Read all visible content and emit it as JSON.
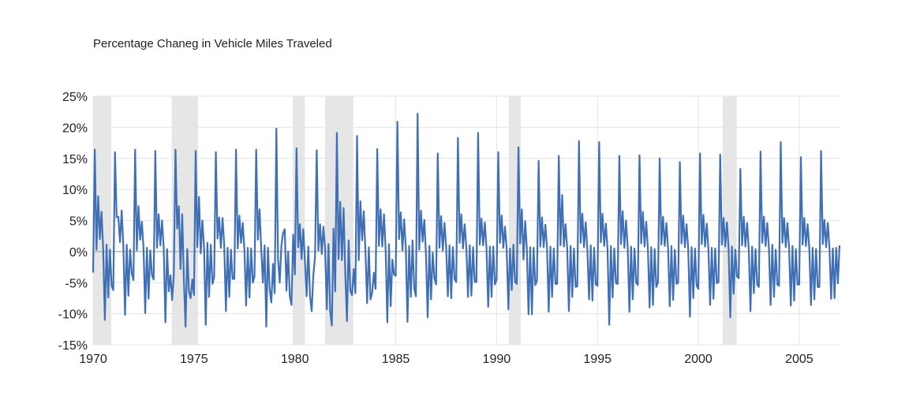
{
  "chart_data": {
    "type": "line",
    "title": "Percentage Chaneg in Vehicle Miles Traveled",
    "xlabel": "",
    "ylabel": "",
    "xlim": [
      1970,
      2007
    ],
    "ylim": [
      -15,
      25
    ],
    "x_ticks": [
      1970,
      1975,
      1980,
      1985,
      1990,
      1995,
      2000,
      2005
    ],
    "x_tick_labels": [
      "1970",
      "1975",
      "1980",
      "1985",
      "1990",
      "1995",
      "2000",
      "2005"
    ],
    "y_ticks": [
      -15,
      -10,
      -5,
      0,
      5,
      10,
      15,
      20,
      25
    ],
    "y_tick_labels": [
      "-15%",
      "-10%",
      "-5%",
      "0%",
      "5%",
      "10%",
      "15%",
      "20%",
      "25%"
    ],
    "grid": "vertical and horizontal light gray",
    "legend": "none",
    "colors": {
      "line": "#3f6fb5",
      "recession": "#e6e6e6",
      "grid": "#e4e4e4",
      "axis": "#999999"
    },
    "recession_bands": [
      [
        1970.0,
        1970.9
      ],
      [
        1973.9,
        1975.2
      ],
      [
        1979.9,
        1980.5
      ],
      [
        1981.5,
        1982.9
      ],
      [
        1990.6,
        1991.2
      ],
      [
        2001.2,
        2001.9
      ]
    ],
    "series": [
      {
        "name": "",
        "frequency": "monthly",
        "start": 1970.0,
        "values": [
          -3.4,
          16.4,
          0.3,
          8.9,
          2.0,
          6.4,
          0.3,
          -11.0,
          1.1,
          -7.4,
          0.3,
          -5.5,
          -6.2,
          16.0,
          5.5,
          5.6,
          1.5,
          6.6,
          0.8,
          -10.2,
          1.1,
          -7.1,
          0.3,
          -3.5,
          -4.6,
          16.4,
          0.2,
          7.3,
          1.9,
          4.8,
          0.5,
          -9.9,
          0.6,
          -7.6,
          0.2,
          -3.8,
          -4.5,
          16.2,
          0.6,
          6.0,
          1.0,
          5.0,
          0.6,
          -11.4,
          0.4,
          -6.4,
          -3.8,
          -7.8,
          -3.8,
          16.4,
          3.7,
          7.3,
          -2.8,
          6.0,
          -4.6,
          -12.1,
          0.4,
          -6.5,
          -7.5,
          -4.5,
          -7.0,
          16.2,
          0.7,
          8.8,
          -0.3,
          5.0,
          0.5,
          -11.8,
          1.4,
          -7.3,
          1.1,
          -5.2,
          -4.1,
          16.0,
          2.1,
          5.5,
          0.6,
          5.4,
          1.0,
          -9.6,
          0.6,
          -7.3,
          0.3,
          -4.4,
          -4.4,
          16.4,
          0.5,
          5.8,
          1.4,
          4.6,
          0.3,
          -8.7,
          0.6,
          -7.4,
          0.5,
          -5.0,
          -4.0,
          16.4,
          1.9,
          6.8,
          0.4,
          -5.0,
          1.0,
          -12.1,
          0.6,
          -6.0,
          -8.2,
          -2.0,
          -6.7,
          19.8,
          -1.2,
          -5.0,
          1.0,
          3.0,
          3.6,
          -6.3,
          0.0,
          -7.2,
          -8.6,
          2.7,
          -3.7,
          16.6,
          0.7,
          4.4,
          -1.2,
          3.6,
          -1.5,
          -7.2,
          0.8,
          -7.1,
          -9.6,
          -3.8,
          -0.8,
          16.3,
          0.2,
          4.4,
          -0.4,
          4.0,
          0.4,
          -9.3,
          1.2,
          -9.6,
          -11.9,
          3.7,
          -6.4,
          19.1,
          -1.2,
          8.0,
          -1.4,
          7.0,
          -3.6,
          -11.2,
          1.8,
          -6.3,
          -7.0,
          -2.8,
          -6.7,
          18.6,
          -1.4,
          8.1,
          1.8,
          6.5,
          -0.1,
          -8.3,
          0.7,
          -7.7,
          -6.6,
          -3.4,
          -6.0,
          16.5,
          0.9,
          6.8,
          0.8,
          6.0,
          0.3,
          -11.4,
          1.2,
          -8.8,
          -1.3,
          -3.7,
          -3.9,
          20.9,
          2.0,
          6.3,
          0.2,
          5.2,
          0.6,
          -11.3,
          0.9,
          -7.3,
          1.8,
          -5.9,
          -7.2,
          22.2,
          0.3,
          6.6,
          1.6,
          5.1,
          -0.5,
          -10.6,
          0.9,
          -7.7,
          -0.2,
          -4.3,
          -5.3,
          15.8,
          0.6,
          5.7,
          0.2,
          4.6,
          0.8,
          -7.2,
          1.0,
          -7.5,
          0.7,
          -4.4,
          -4.9,
          18.3,
          1.4,
          6.0,
          0.5,
          4.4,
          0.6,
          -7.3,
          1.0,
          -7.1,
          0.7,
          -4.9,
          -4.9,
          19.1,
          1.1,
          5.3,
          1.0,
          4.7,
          0.5,
          -8.9,
          0.8,
          -7.3,
          0.8,
          -5.3,
          -4.5,
          16.0,
          1.4,
          5.8,
          0.6,
          4.0,
          0.4,
          -9.3,
          0.5,
          -6.2,
          1.1,
          -4.9,
          -5.2,
          16.8,
          1.3,
          6.8,
          -1.3,
          4.9,
          0.4,
          -10.1,
          0.7,
          -10.1,
          0.6,
          -5.4,
          -4.7,
          14.6,
          0.8,
          5.5,
          0.7,
          4.3,
          0.6,
          -9.7,
          0.8,
          -7.3,
          0.5,
          -5.2,
          -5.2,
          15.4,
          1.0,
          9.1,
          0.8,
          4.4,
          0.4,
          -9.6,
          0.9,
          -7.3,
          0.5,
          -5.7,
          -5.6,
          17.8,
          1.4,
          6.1,
          0.7,
          4.7,
          0.3,
          -7.7,
          1.0,
          -7.9,
          0.6,
          -5.3,
          -5.5,
          17.6,
          1.5,
          6.1,
          0.9,
          4.5,
          0.3,
          -11.8,
          0.9,
          -7.4,
          0.5,
          -5.1,
          -5.2,
          15.4,
          1.2,
          6.5,
          0.6,
          5.0,
          0.6,
          -9.7,
          0.8,
          -7.7,
          0.5,
          -5.0,
          -5.4,
          15.5,
          1.3,
          6.4,
          0.8,
          4.8,
          0.4,
          -9.0,
          0.7,
          -8.6,
          0.4,
          -5.7,
          -5.0,
          15.0,
          1.1,
          5.6,
          0.9,
          4.6,
          0.4,
          -8.8,
          0.9,
          -7.8,
          0.3,
          -5.2,
          -5.0,
          14.4,
          1.3,
          5.8,
          0.7,
          4.4,
          0.3,
          -10.5,
          0.7,
          -7.5,
          0.5,
          -5.5,
          -6.0,
          15.8,
          1.2,
          5.9,
          0.8,
          4.5,
          0.3,
          -8.6,
          0.6,
          -7.6,
          0.5,
          -5.1,
          -4.9,
          15.6,
          1.1,
          5.4,
          0.8,
          4.7,
          0.5,
          -10.6,
          0.8,
          -6.8,
          0.3,
          -4.0,
          -4.3,
          13.3,
          1.0,
          5.6,
          0.8,
          4.6,
          0.3,
          -9.6,
          0.8,
          -6.7,
          0.4,
          -5.3,
          -5.7,
          16.1,
          1.4,
          5.6,
          0.9,
          4.6,
          0.4,
          -8.6,
          1.1,
          -7.3,
          0.3,
          -5.3,
          -5.5,
          17.6,
          1.4,
          5.4,
          0.7,
          4.6,
          0.4,
          -8.7,
          0.9,
          -7.9,
          0.4,
          -5.3,
          -5.3,
          15.2,
          1.1,
          5.4,
          0.9,
          4.4,
          0.5,
          -8.6,
          0.6,
          -7.7,
          0.4,
          -5.7,
          -5.7,
          16.2,
          1.2,
          5.1,
          0.7,
          4.6,
          0.5,
          -7.6,
          0.5,
          -7.5,
          0.6,
          -5.1,
          1.0
        ]
      }
    ]
  }
}
